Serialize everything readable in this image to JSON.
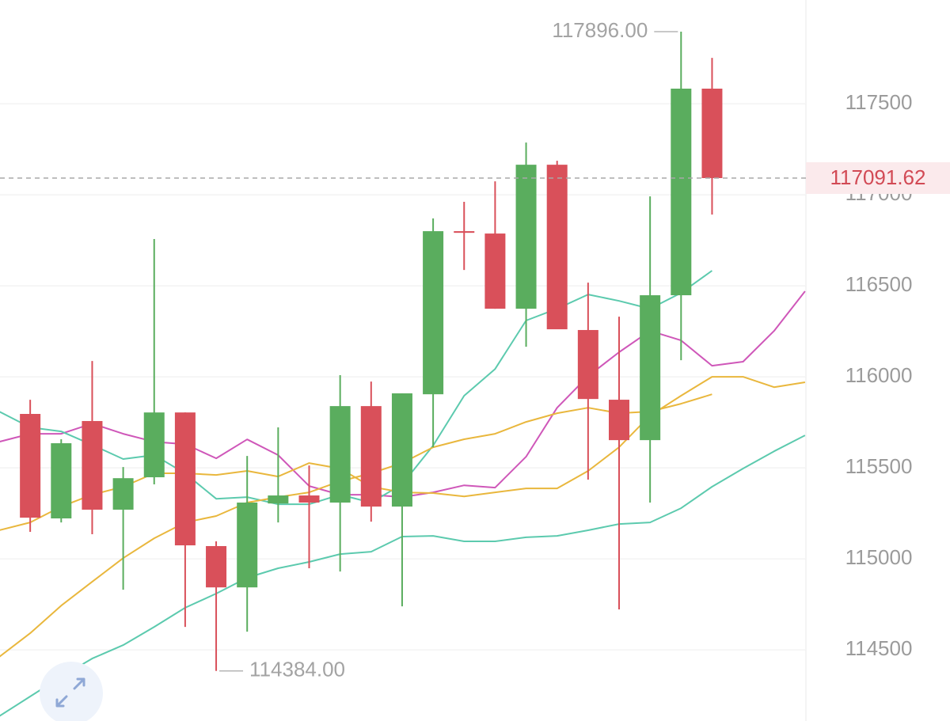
{
  "chart_data": {
    "type": "candlestick",
    "ylim": [
      114109,
      118070
    ],
    "yticks": [
      114500,
      115000,
      115500,
      116000,
      116500,
      117000,
      117500
    ],
    "grid": true,
    "up_color": "#5aad5e",
    "down_color": "#d9505a",
    "open": [
      115796,
      115222,
      115757,
      115270,
      115448,
      115804,
      115070,
      114843,
      115304,
      115348,
      115309,
      115839,
      115287,
      115904,
      116800,
      116787,
      116374,
      117165,
      116257,
      115874,
      115652,
      116448,
      117583
    ],
    "high": [
      115874,
      115657,
      116087,
      115504,
      116757,
      115804,
      115096,
      115565,
      115722,
      115513,
      116009,
      115974,
      115909,
      116870,
      116961,
      117074,
      117287,
      117187,
      116517,
      116330,
      116991,
      117896,
      117752
    ],
    "low": [
      115148,
      115200,
      115135,
      114830,
      115409,
      114626,
      114384,
      114600,
      115200,
      114948,
      114930,
      115204,
      114739,
      115613,
      116587,
      116374,
      116165,
      116261,
      115435,
      114722,
      115309,
      116091,
      116891
    ],
    "close": [
      115226,
      115635,
      115270,
      115443,
      115804,
      115074,
      114843,
      115309,
      115348,
      115309,
      115839,
      115287,
      115909,
      116800,
      116791,
      116374,
      117165,
      116261,
      115878,
      115652,
      116448,
      117583,
      117091.62
    ],
    "series": [
      {
        "color": "#cf57b9",
        "values": [
          115643,
          115687,
          115687,
          115743,
          115687,
          115643,
          115630,
          115552,
          115656,
          115570,
          115400,
          115352,
          115352,
          115339,
          115365,
          115404,
          115391,
          115561,
          115830,
          116004,
          116135,
          116252,
          116200,
          116061,
          116083,
          116252,
          116470
        ]
      },
      {
        "color": "#5ccaae",
        "values": [
          115809,
          115722,
          115700,
          115626,
          115548,
          115570,
          115469,
          115330,
          115339,
          115300,
          115300,
          115352,
          115309,
          115409,
          115622,
          115896,
          116043,
          116309,
          116374,
          116452,
          116417,
          116374,
          116461,
          116583,
          null,
          null,
          null
        ]
      },
      {
        "color": "#e9b73d",
        "values": [
          115157,
          115200,
          115287,
          115352,
          115396,
          115470,
          115470,
          115461,
          115483,
          115452,
          115526,
          115496,
          115396,
          115365,
          115361,
          115343,
          115365,
          115387,
          115387,
          115483,
          115613,
          115787,
          115896,
          116000,
          116000,
          115943,
          115970
        ]
      },
      {
        "color": "#e9b73d",
        "values": [
          114461,
          114591,
          114743,
          114874,
          115004,
          115113,
          115200,
          115235,
          115309,
          115339,
          115365,
          115426,
          115470,
          115526,
          115613,
          115657,
          115687,
          115752,
          115800,
          115830,
          115800,
          115809,
          115852,
          115904,
          null,
          null,
          null
        ]
      },
      {
        "color": "#5ccaae",
        "values": [
          114135,
          114244,
          114352,
          114452,
          114526,
          114626,
          114731,
          114809,
          114896,
          114948,
          114983,
          115026,
          115039,
          115122,
          115126,
          115096,
          115096,
          115118,
          115126,
          115157,
          115191,
          115200,
          115278,
          115396,
          115496,
          115591,
          115678
        ]
      }
    ],
    "high_annotation": {
      "value": 117896,
      "label": "117896.00"
    },
    "low_annotation": {
      "value": 114384,
      "label": "114384.00"
    }
  }
}
